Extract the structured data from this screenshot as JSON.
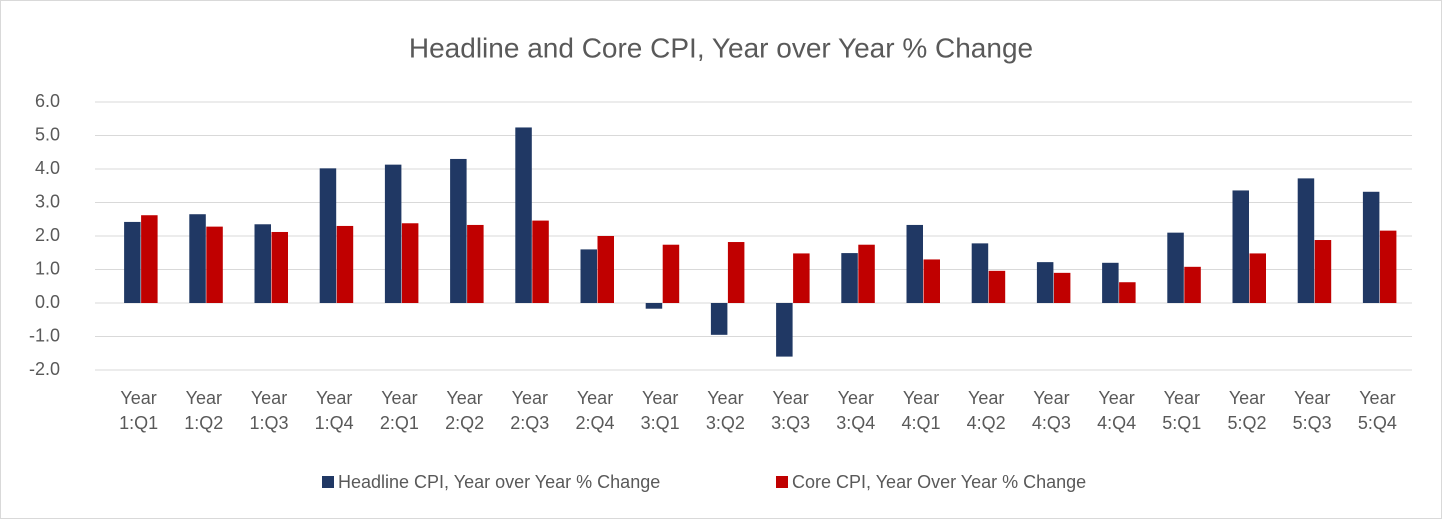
{
  "chart_data": {
    "type": "bar",
    "title": "Headline and Core CPI, Year over Year % Change",
    "categories": [
      "Year 1:Q1",
      "Year 1:Q2",
      "Year 1:Q3",
      "Year 1:Q4",
      "Year 2:Q1",
      "Year 2:Q2",
      "Year 2:Q3",
      "Year 2:Q4",
      "Year 3:Q1",
      "Year 3:Q2",
      "Year 3:Q3",
      "Year 3:Q4",
      "Year 4:Q1",
      "Year 4:Q2",
      "Year 4:Q3",
      "Year 4:Q4",
      "Year 5:Q1",
      "Year 5:Q2",
      "Year 5:Q3",
      "Year 5:Q4"
    ],
    "series": [
      {
        "name": "Headline CPI, Year over Year % Change",
        "color": "#203864",
        "values": [
          2.42,
          2.65,
          2.35,
          4.02,
          4.13,
          4.3,
          5.24,
          1.6,
          -0.17,
          -0.95,
          -1.6,
          1.49,
          2.33,
          1.78,
          1.22,
          1.2,
          2.1,
          3.36,
          3.72,
          3.32
        ]
      },
      {
        "name": "Core CPI, Year Over Year % Change",
        "color": "#c00000",
        "values": [
          2.62,
          2.28,
          2.12,
          2.3,
          2.38,
          2.33,
          2.46,
          2.0,
          1.74,
          1.82,
          1.48,
          1.74,
          1.3,
          0.96,
          0.9,
          0.62,
          1.08,
          1.48,
          1.88,
          2.16
        ]
      }
    ],
    "ylim": [
      -2,
      6
    ],
    "yticks": [
      {
        "value": -2,
        "label": "-2.0"
      },
      {
        "value": -1,
        "label": "-1.0"
      },
      {
        "value": 0,
        "label": "0.0"
      },
      {
        "value": 1,
        "label": "1.0"
      },
      {
        "value": 2,
        "label": "2.0"
      },
      {
        "value": 3,
        "label": "3.0"
      },
      {
        "value": 4,
        "label": "4.0"
      },
      {
        "value": 5,
        "label": "5.0"
      },
      {
        "value": 6,
        "label": "6.0"
      }
    ],
    "grid": true,
    "legend": "bottom"
  }
}
